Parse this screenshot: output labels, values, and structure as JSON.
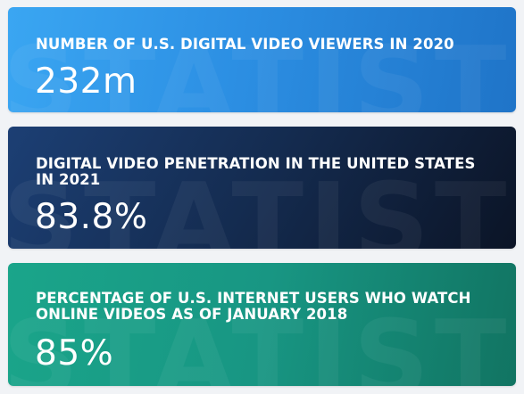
{
  "watermark_text": "STATISTIC",
  "stats": [
    {
      "title": "NUMBER OF U.S. DIGITAL VIDEO VIEWERS IN 2020",
      "value": "232m",
      "color": "#2c8fe3"
    },
    {
      "title": "DIGITAL VIDEO PENETRATION IN THE UNITED STATES IN 2021",
      "value": "83.8%",
      "color": "#142b4f"
    },
    {
      "title": "PERCENTAGE OF U.S. INTERNET USERS WHO WATCH ONLINE VIDEOS AS OF JANUARY 2018",
      "value": "85%",
      "color": "#189683"
    }
  ]
}
